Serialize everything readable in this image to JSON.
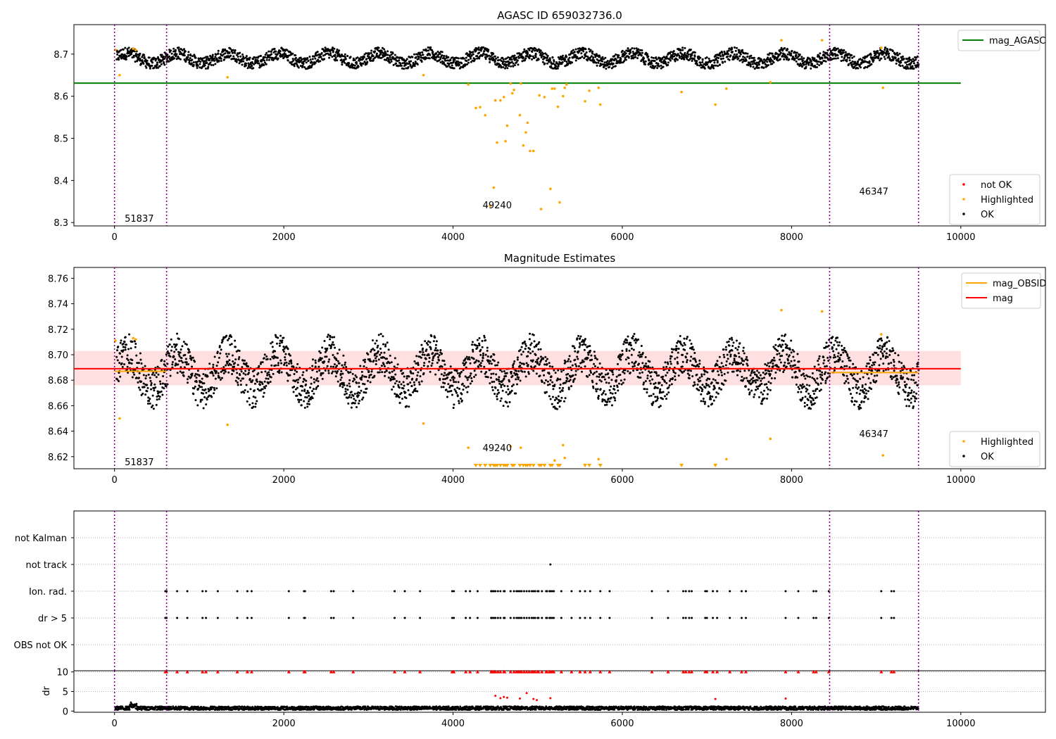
{
  "chart_data": [
    {
      "type": "scatter",
      "title": "AGASC ID 659032736.0",
      "xlim": [
        -480,
        11000
      ],
      "ylim": [
        8.292,
        8.77
      ],
      "xticks": [
        0,
        2000,
        4000,
        6000,
        8000,
        10000
      ],
      "yticks": [
        8.3,
        8.4,
        8.5,
        8.6,
        8.7
      ],
      "ytick_labels": [
        "8.3",
        "8.4",
        "8.5",
        "8.6",
        "8.7"
      ],
      "vlines": [
        0,
        615,
        8450,
        9500
      ],
      "hlines": [
        {
          "name": "mag_AGASC",
          "y": 8.631,
          "x_range": [
            -480,
            10000
          ],
          "color": "#008000"
        }
      ],
      "annotations": [
        {
          "text": "51837",
          "x": 120,
          "y": 8.31
        },
        {
          "text": "49240",
          "x": 4350,
          "y": 8.342
        },
        {
          "text": "46347",
          "x": 8800,
          "y": 8.375
        }
      ],
      "series": [
        {
          "name": "OK",
          "color": "#000000",
          "description": "dense points oscillating between about 8.67 and 8.73 across x 0 to 9500"
        },
        {
          "name": "Highlighted",
          "color": "#ffa500",
          "points": [
            [
              10,
              8.71
            ],
            [
              60,
              8.65
            ],
            [
              220,
              8.713
            ],
            [
              250,
              8.71
            ],
            [
              1335,
              8.645
            ],
            [
              3650,
              8.65
            ],
            [
              4180,
              8.628
            ],
            [
              4270,
              8.572
            ],
            [
              4320,
              8.574
            ],
            [
              4380,
              8.555
            ],
            [
              4440,
              8.34
            ],
            [
              4480,
              8.383
            ],
            [
              4500,
              8.59
            ],
            [
              4520,
              8.49
            ],
            [
              4560,
              8.59
            ],
            [
              4600,
              8.598
            ],
            [
              4620,
              8.493
            ],
            [
              4640,
              8.53
            ],
            [
              4680,
              8.63
            ],
            [
              4700,
              8.607
            ],
            [
              4720,
              8.615
            ],
            [
              4790,
              8.555
            ],
            [
              4800,
              8.63
            ],
            [
              4830,
              8.483
            ],
            [
              4860,
              8.514
            ],
            [
              4880,
              8.537
            ],
            [
              4910,
              8.47
            ],
            [
              4950,
              8.47
            ],
            [
              5020,
              8.602
            ],
            [
              5040,
              8.332
            ],
            [
              5080,
              8.598
            ],
            [
              5150,
              8.38
            ],
            [
              5170,
              8.618
            ],
            [
              5200,
              8.618
            ],
            [
              5240,
              8.575
            ],
            [
              5260,
              8.348
            ],
            [
              5300,
              8.6
            ],
            [
              5320,
              8.62
            ],
            [
              5340,
              8.628
            ],
            [
              5560,
              8.588
            ],
            [
              5610,
              8.613
            ],
            [
              5720,
              8.62
            ],
            [
              5740,
              8.58
            ],
            [
              6700,
              8.61
            ],
            [
              7100,
              8.58
            ],
            [
              7230,
              8.618
            ],
            [
              7750,
              8.633
            ],
            [
              7880,
              8.733
            ],
            [
              8360,
              8.733
            ],
            [
              9060,
              8.715
            ],
            [
              9080,
              8.62
            ]
          ]
        },
        {
          "name": "not OK",
          "color": "#ff0000",
          "points": []
        }
      ],
      "legends": [
        {
          "placement": "upper-right",
          "entries": [
            {
              "label": "mag_AGASC",
              "color": "#008000",
              "kind": "line"
            }
          ]
        },
        {
          "placement": "lower-right",
          "entries": [
            {
              "label": "not OK",
              "color": "#ff0000",
              "kind": "dot"
            },
            {
              "label": "Highlighted",
              "color": "#ffa500",
              "kind": "dot"
            },
            {
              "label": "OK",
              "color": "#000000",
              "kind": "dot"
            }
          ]
        }
      ]
    },
    {
      "type": "scatter",
      "title": "Magnitude Estimates",
      "xlim": [
        -480,
        11000
      ],
      "ylim": [
        8.6105,
        8.7685
      ],
      "xticks": [
        0,
        2000,
        4000,
        6000,
        8000,
        10000
      ],
      "yticks": [
        8.62,
        8.64,
        8.66,
        8.68,
        8.7,
        8.72,
        8.74,
        8.76
      ],
      "ytick_labels": [
        "8.62",
        "8.64",
        "8.66",
        "8.68",
        "8.70",
        "8.72",
        "8.74",
        "8.76"
      ],
      "vlines": [
        0,
        615,
        8450,
        9500
      ],
      "hlines": [
        {
          "name": "mag",
          "y": 8.689,
          "x_range": [
            -480,
            10000
          ],
          "color": "#ff0000"
        }
      ],
      "band": {
        "y_range": [
          8.676,
          8.703
        ],
        "x_range": [
          -480,
          10000
        ],
        "color": "#ff0000"
      },
      "obsid_mag_segments": [
        {
          "x_range": [
            0,
            615
          ],
          "y": 8.687
        },
        {
          "x_range": [
            615,
            8450
          ],
          "y": 8.689
        },
        {
          "x_range": [
            8450,
            9500
          ],
          "y": 8.686
        }
      ],
      "annotations": [
        {
          "text": "51837",
          "x": 120,
          "y": 8.616
        },
        {
          "text": "49240",
          "x": 4350,
          "y": 8.627
        },
        {
          "text": "46347",
          "x": 8800,
          "y": 8.638
        }
      ],
      "series": [
        {
          "name": "OK",
          "color": "#000000",
          "description": "dense points oscillating between about 8.655 and 8.72 across x 0 to 9500"
        },
        {
          "name": "Highlighted",
          "color": "#ffa500",
          "points": [
            [
              10,
              8.711
            ],
            [
              60,
              8.65
            ],
            [
              220,
              8.713
            ],
            [
              250,
              8.712
            ],
            [
              1335,
              8.645
            ],
            [
              3650,
              8.646
            ],
            [
              4180,
              8.627
            ],
            [
              4680,
              8.628
            ],
            [
              4800,
              8.627
            ],
            [
              5200,
              8.617
            ],
            [
              5300,
              8.629
            ],
            [
              5320,
              8.619
            ],
            [
              5720,
              8.618
            ],
            [
              7230,
              8.618
            ],
            [
              7750,
              8.634
            ],
            [
              7880,
              8.735
            ],
            [
              8360,
              8.734
            ],
            [
              9060,
              8.716
            ],
            [
              9080,
              8.621
            ]
          ]
        },
        {
          "name": "Highlighted below range",
          "color": "#ffa500",
          "marker": "down-triangle",
          "x": [
            4270,
            4320,
            4380,
            4440,
            4480,
            4500,
            4520,
            4560,
            4600,
            4620,
            4640,
            4700,
            4720,
            4790,
            4830,
            4860,
            4880,
            4910,
            4950,
            5020,
            5040,
            5080,
            5150,
            5170,
            5240,
            5260,
            5560,
            5610,
            5740,
            6700,
            7100
          ]
        }
      ],
      "legends": [
        {
          "placement": "upper-right",
          "entries": [
            {
              "label": "mag_OBSID",
              "color": "#ffa500",
              "kind": "line"
            },
            {
              "label": "mag",
              "color": "#ff0000",
              "kind": "line"
            }
          ]
        },
        {
          "placement": "lower-right",
          "entries": [
            {
              "label": "Highlighted",
              "color": "#ffa500",
              "kind": "dot"
            },
            {
              "label": "OK",
              "color": "#000000",
              "kind": "dot"
            }
          ]
        }
      ]
    },
    {
      "type": "scatter",
      "title": "",
      "xlim": [
        -480,
        11000
      ],
      "categories": [
        "OBS not OK",
        "dr > 5",
        "Ion. rad.",
        "not track",
        "not Kalman"
      ],
      "vlines": [
        0,
        615,
        8450,
        9500
      ],
      "flags": {
        "Ion. rad.": [
          600,
          615,
          740,
          860,
          1040,
          1080,
          1220,
          1450,
          1570,
          1620,
          2060,
          2240,
          2250,
          2560,
          2590,
          2820,
          3310,
          3430,
          3610,
          3990,
          4010,
          4150,
          4200,
          4290,
          4450,
          4460,
          4480,
          4500,
          4530,
          4560,
          4600,
          4610,
          4680,
          4720,
          4750,
          4770,
          4790,
          4810,
          4840,
          4870,
          4900,
          4930,
          4950,
          4970,
          5000,
          5010,
          5050,
          5100,
          5110,
          5140,
          5150,
          5170,
          5190,
          5280,
          5400,
          5500,
          5560,
          5620,
          5740,
          5850,
          6350,
          6540,
          6720,
          6750,
          6790,
          6820,
          6980,
          7000,
          7070,
          7120,
          7270,
          7410,
          7460,
          7930,
          8080,
          8260,
          8290,
          8440,
          9060,
          9180,
          9210
        ],
        "dr > 5": [
          600,
          615,
          740,
          860,
          1040,
          1080,
          1220,
          1450,
          1570,
          1620,
          2060,
          2240,
          2250,
          2560,
          2590,
          2820,
          3310,
          3430,
          3610,
          3990,
          4010,
          4150,
          4200,
          4290,
          4450,
          4460,
          4480,
          4500,
          4530,
          4560,
          4600,
          4610,
          4680,
          4720,
          4750,
          4770,
          4790,
          4810,
          4840,
          4870,
          4900,
          4930,
          4950,
          4970,
          5000,
          5010,
          5050,
          5100,
          5110,
          5140,
          5150,
          5170,
          5190,
          5280,
          5400,
          5500,
          5560,
          5620,
          5740,
          5850,
          6350,
          6540,
          6720,
          6750,
          6790,
          6820,
          6980,
          7000,
          7070,
          7120,
          7270,
          7410,
          7460,
          7930,
          8080,
          8260,
          8290,
          8440,
          9060,
          9180,
          9210
        ],
        "not track": [
          5150
        ],
        "not Kalman": [],
        "OBS not OK": []
      }
    },
    {
      "type": "scatter",
      "title": "",
      "xlim": [
        -480,
        11000
      ],
      "ylim": [
        -0.3,
        10.3
      ],
      "yticks": [
        0,
        5,
        10
      ],
      "xticks": [
        0,
        2000,
        4000,
        6000,
        8000,
        10000
      ],
      "ylabel": "dr",
      "vlines": [
        0,
        615,
        8450,
        9500
      ],
      "series": [
        {
          "name": "dr",
          "color": "#000000",
          "description": "dense points between about 0 and 1.5 across x 0 to 9500"
        },
        {
          "name": "dr > 5 capped",
          "color": "#ff0000",
          "marker": "up-triangle",
          "y": 10
        },
        {
          "name": "dr outliers",
          "color": "#ff0000",
          "points": [
            [
              4500,
              3.9
            ],
            [
              4560,
              3.3
            ],
            [
              4600,
              3.6
            ],
            [
              4640,
              3.4
            ],
            [
              4790,
              3.2
            ],
            [
              4870,
              4.6
            ],
            [
              4950,
              3.1
            ],
            [
              4990,
              2.8
            ],
            [
              5150,
              3.3
            ],
            [
              7100,
              3.1
            ],
            [
              7930,
              3.2
            ]
          ]
        }
      ]
    }
  ]
}
